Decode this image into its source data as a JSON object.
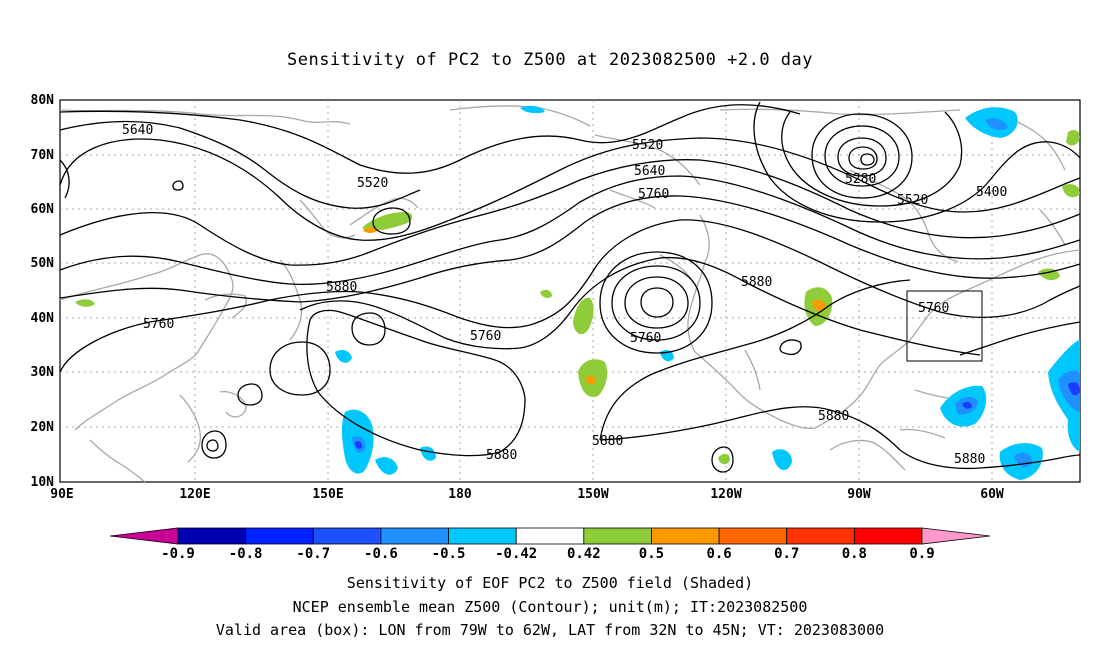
{
  "title": "Sensitivity of PC2 to Z500 at 2023082500 +2.0 day",
  "map": {
    "lat_labels": [
      "80N",
      "70N",
      "60N",
      "50N",
      "40N",
      "30N",
      "20N",
      "10N"
    ],
    "lon_labels": [
      "90E",
      "120E",
      "150E",
      "180",
      "150W",
      "120W",
      "90W",
      "60W"
    ],
    "contour_labels": [
      "5640",
      "5520",
      "5520",
      "5640",
      "5760",
      "5280",
      "5400",
      "5520",
      "5880",
      "5760",
      "5760",
      "5760",
      "5880",
      "5760",
      "5880",
      "5880",
      "5880",
      "5880"
    ],
    "colors": {
      "contour": "#000000",
      "coastline": "#a8a8a8",
      "grid": "#a8a8a8",
      "shade_pos_weak": "#8fcc3a",
      "shade_pos_mid": "#ff9900",
      "shade_neg_weak": "#00c8ff",
      "shade_neg_mid": "#1e90ff",
      "shade_neg_strong": "#1c3cff"
    }
  },
  "colorbar": {
    "labels": [
      "-0.9",
      "-0.8",
      "-0.7",
      "-0.6",
      "-0.5",
      "-0.42",
      "0.42",
      "0.5",
      "0.6",
      "0.7",
      "0.8",
      "0.9"
    ],
    "colors": [
      "#cc0099",
      "#0000b3",
      "#0022ff",
      "#1e50ff",
      "#1e90ff",
      "#00c8ff",
      "#ffffff",
      "#8fcc3a",
      "#ff9900",
      "#ff6600",
      "#ff3300",
      "#ff0000",
      "#ff99cc"
    ]
  },
  "captions": {
    "line1": "Sensitivity of EOF PC2 to Z500 field (Shaded)",
    "line2": "NCEP ensemble mean Z500 (Contour); unit(m); IT:2023082500",
    "line3": "Valid area (box): LON from 79W to 62W, LAT from 32N to 45N; VT: 2023083000"
  }
}
